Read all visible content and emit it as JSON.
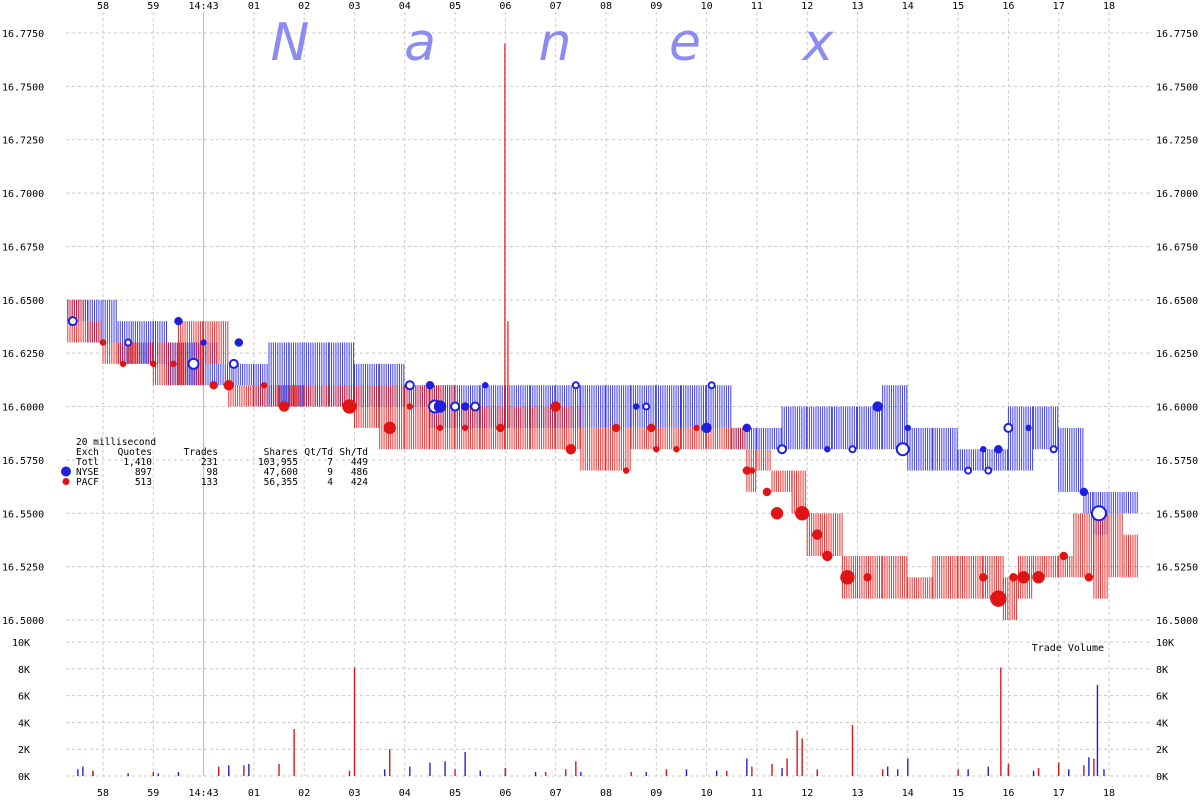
{
  "chart_data": {
    "type": "line",
    "watermark": [
      "N",
      "a",
      "n",
      "e",
      "x"
    ],
    "ylim": [
      16.5,
      16.775
    ],
    "y_ticks": [
      "16.7750",
      "16.7500",
      "16.7250",
      "16.7000",
      "16.6750",
      "16.6500",
      "16.6250",
      "16.6000",
      "16.5750",
      "16.5500",
      "16.5250",
      "16.5000"
    ],
    "x_ticks": [
      "58",
      "59",
      "14:43",
      "01",
      "02",
      "03",
      "04",
      "05",
      "06",
      "07",
      "08",
      "09",
      "10",
      "11",
      "12",
      "13",
      "14",
      "15",
      "16",
      "17",
      "18"
    ],
    "volume_label": "Trade Volume",
    "volume_ylim": [
      0,
      10000
    ],
    "volume_ticks": [
      "10K",
      "8K",
      "6K",
      "4K",
      "2K",
      "0K"
    ],
    "colors": {
      "NYSE": "#1f1fe0",
      "PACF": "#e01414"
    },
    "table": {
      "title": "20 millisecond",
      "headers": [
        "Exch",
        "Quotes",
        "Trades",
        "Shares",
        "Qt/Td",
        "Sh/Td"
      ],
      "rows": [
        [
          "Totl",
          "1,410",
          "231",
          "103,955",
          "7",
          "449"
        ],
        [
          "NYSE",
          "897",
          "98",
          "47,600",
          "9",
          "486"
        ],
        [
          "PACF",
          "513",
          "133",
          "56,355",
          "4",
          "424"
        ]
      ]
    },
    "series": [
      {
        "name": "NYSE",
        "quote_bands": [
          [
            57.3,
            16.64,
            16.65
          ],
          [
            57.7,
            16.63,
            16.65
          ],
          [
            58.0,
            16.63,
            16.65
          ],
          [
            58.3,
            16.62,
            16.64
          ],
          [
            58.6,
            16.62,
            16.64
          ],
          [
            59.0,
            16.62,
            16.64
          ],
          [
            59.3,
            16.61,
            16.63
          ],
          [
            59.6,
            16.61,
            16.63
          ],
          [
            0.0,
            16.61,
            16.63
          ],
          [
            0.3,
            16.61,
            16.62
          ],
          [
            0.6,
            16.61,
            16.62
          ],
          [
            1.0,
            16.6,
            16.62
          ],
          [
            1.3,
            16.6,
            16.63
          ],
          [
            1.7,
            16.6,
            16.63
          ],
          [
            2.0,
            16.6,
            16.63
          ],
          [
            2.5,
            16.6,
            16.63
          ],
          [
            3.0,
            16.6,
            16.62
          ],
          [
            3.5,
            16.6,
            16.62
          ],
          [
            4.0,
            16.6,
            16.61
          ],
          [
            4.5,
            16.59,
            16.61
          ],
          [
            5.0,
            16.59,
            16.61
          ],
          [
            5.5,
            16.59,
            16.61
          ],
          [
            6.0,
            16.59,
            16.61
          ],
          [
            6.5,
            16.59,
            16.61
          ],
          [
            7.0,
            16.59,
            16.61
          ],
          [
            7.5,
            16.59,
            16.61
          ],
          [
            8.0,
            16.59,
            16.61
          ],
          [
            8.5,
            16.59,
            16.61
          ],
          [
            9.0,
            16.59,
            16.61
          ],
          [
            9.5,
            16.59,
            16.61
          ],
          [
            10.0,
            16.59,
            16.61
          ],
          [
            10.5,
            16.58,
            16.59
          ],
          [
            11.0,
            16.58,
            16.59
          ],
          [
            11.5,
            16.58,
            16.6
          ],
          [
            12.0,
            16.58,
            16.6
          ],
          [
            12.5,
            16.58,
            16.6
          ],
          [
            13.0,
            16.58,
            16.6
          ],
          [
            13.5,
            16.58,
            16.61
          ],
          [
            14.0,
            16.57,
            16.59
          ],
          [
            14.5,
            16.57,
            16.59
          ],
          [
            15.0,
            16.57,
            16.58
          ],
          [
            15.5,
            16.57,
            16.58
          ],
          [
            16.0,
            16.57,
            16.6
          ],
          [
            16.5,
            16.58,
            16.6
          ],
          [
            17.0,
            16.56,
            16.59
          ],
          [
            17.5,
            16.55,
            16.56
          ],
          [
            17.7,
            16.54,
            16.56
          ],
          [
            18.0,
            16.55,
            16.56
          ],
          [
            18.3,
            16.55,
            16.56
          ]
        ],
        "trades": [
          [
            57.4,
            16.64,
            4
          ],
          [
            58.0,
            16.63,
            3
          ],
          [
            58.5,
            16.63,
            3
          ],
          [
            59.5,
            16.64,
            4
          ],
          [
            59.8,
            16.62,
            5
          ],
          [
            0.0,
            16.63,
            3
          ],
          [
            0.6,
            16.62,
            4
          ],
          [
            0.7,
            16.63,
            4
          ],
          [
            4.1,
            16.61,
            4
          ],
          [
            4.5,
            16.61,
            4
          ],
          [
            4.6,
            16.6,
            6
          ],
          [
            4.7,
            16.6,
            6
          ],
          [
            5.0,
            16.6,
            4
          ],
          [
            5.2,
            16.6,
            4
          ],
          [
            5.4,
            16.6,
            4
          ],
          [
            5.6,
            16.61,
            3
          ],
          [
            7.4,
            16.61,
            3
          ],
          [
            8.6,
            16.6,
            3
          ],
          [
            8.8,
            16.6,
            3
          ],
          [
            10.0,
            16.59,
            5
          ],
          [
            10.1,
            16.61,
            3
          ],
          [
            10.8,
            16.59,
            4
          ],
          [
            11.5,
            16.58,
            4
          ],
          [
            12.4,
            16.58,
            3
          ],
          [
            12.9,
            16.58,
            3
          ],
          [
            13.4,
            16.6,
            5
          ],
          [
            13.9,
            16.58,
            6
          ],
          [
            14.0,
            16.59,
            3
          ],
          [
            15.2,
            16.57,
            3
          ],
          [
            15.5,
            16.58,
            3
          ],
          [
            15.6,
            16.57,
            3
          ],
          [
            15.8,
            16.58,
            4
          ],
          [
            16.0,
            16.59,
            4
          ],
          [
            16.4,
            16.59,
            3
          ],
          [
            16.9,
            16.58,
            3
          ],
          [
            17.5,
            16.56,
            4
          ],
          [
            17.8,
            16.55,
            7
          ]
        ],
        "volume": [
          [
            57.5,
            500
          ],
          [
            57.6,
            700
          ],
          [
            57.8,
            300
          ],
          [
            58.5,
            200
          ],
          [
            59.1,
            200
          ],
          [
            59.5,
            300
          ],
          [
            0.5,
            800
          ],
          [
            0.9,
            900
          ],
          [
            3.6,
            500
          ],
          [
            4.1,
            700
          ],
          [
            4.5,
            1000
          ],
          [
            4.8,
            1100
          ],
          [
            5.2,
            1800
          ],
          [
            5.5,
            400
          ],
          [
            6.0,
            600
          ],
          [
            6.6,
            300
          ],
          [
            7.5,
            300
          ],
          [
            8.8,
            300
          ],
          [
            9.6,
            500
          ],
          [
            10.2,
            400
          ],
          [
            10.8,
            1300
          ],
          [
            11.5,
            600
          ],
          [
            12.2,
            300
          ],
          [
            13.6,
            700
          ],
          [
            13.8,
            500
          ],
          [
            14.0,
            1300
          ],
          [
            15.2,
            500
          ],
          [
            15.6,
            700
          ],
          [
            16.0,
            600
          ],
          [
            16.5,
            400
          ],
          [
            17.2,
            500
          ],
          [
            17.6,
            1400
          ],
          [
            17.77,
            6800
          ],
          [
            17.9,
            500
          ]
        ]
      },
      {
        "name": "PACF",
        "quote_bands": [
          [
            57.3,
            16.63,
            16.65
          ],
          [
            57.7,
            16.63,
            16.64
          ],
          [
            58.0,
            16.62,
            16.63
          ],
          [
            58.5,
            16.62,
            16.63
          ],
          [
            59.0,
            16.61,
            16.63
          ],
          [
            59.5,
            16.61,
            16.64
          ],
          [
            0.0,
            16.62,
            16.64
          ],
          [
            0.5,
            16.6,
            16.61
          ],
          [
            1.0,
            16.6,
            16.61
          ],
          [
            1.5,
            16.6,
            16.61
          ],
          [
            2.0,
            16.6,
            16.61
          ],
          [
            2.5,
            16.6,
            16.61
          ],
          [
            3.0,
            16.59,
            16.61
          ],
          [
            3.5,
            16.58,
            16.61
          ],
          [
            4.0,
            16.58,
            16.61
          ],
          [
            4.5,
            16.58,
            16.61
          ],
          [
            5.0,
            16.58,
            16.6
          ],
          [
            5.5,
            16.58,
            16.6
          ],
          [
            6.0,
            16.58,
            16.6
          ],
          [
            6.5,
            16.58,
            16.6
          ],
          [
            7.0,
            16.58,
            16.6
          ],
          [
            7.5,
            16.57,
            16.59
          ],
          [
            8.0,
            16.57,
            16.59
          ],
          [
            8.5,
            16.58,
            16.59
          ],
          [
            9.0,
            16.58,
            16.59
          ],
          [
            9.5,
            16.58,
            16.59
          ],
          [
            10.0,
            16.58,
            16.59
          ],
          [
            10.5,
            16.58,
            16.59
          ],
          [
            10.8,
            16.56,
            16.58
          ],
          [
            11.0,
            16.57,
            16.58
          ],
          [
            11.3,
            16.56,
            16.57
          ],
          [
            11.7,
            16.55,
            16.57
          ],
          [
            12.0,
            16.53,
            16.55
          ],
          [
            12.3,
            16.53,
            16.55
          ],
          [
            12.7,
            16.51,
            16.53
          ],
          [
            13.0,
            16.51,
            16.53
          ],
          [
            13.5,
            16.51,
            16.53
          ],
          [
            14.0,
            16.51,
            16.52
          ],
          [
            14.5,
            16.51,
            16.53
          ],
          [
            15.0,
            16.51,
            16.53
          ],
          [
            15.5,
            16.51,
            16.53
          ],
          [
            15.9,
            16.5,
            16.52
          ],
          [
            16.2,
            16.51,
            16.53
          ],
          [
            16.5,
            16.52,
            16.53
          ],
          [
            17.0,
            16.52,
            16.53
          ],
          [
            17.3,
            16.52,
            16.55
          ],
          [
            17.7,
            16.51,
            16.55
          ],
          [
            18.0,
            16.52,
            16.55
          ],
          [
            18.3,
            16.52,
            16.54
          ]
        ],
        "trades": [
          [
            58.0,
            16.63,
            3
          ],
          [
            58.4,
            16.62,
            3
          ],
          [
            59.0,
            16.62,
            3
          ],
          [
            59.4,
            16.62,
            3
          ],
          [
            0.2,
            16.61,
            4
          ],
          [
            0.5,
            16.61,
            5
          ],
          [
            1.2,
            16.61,
            3
          ],
          [
            1.6,
            16.6,
            5
          ],
          [
            2.9,
            16.6,
            7
          ],
          [
            3.7,
            16.59,
            6
          ],
          [
            4.1,
            16.6,
            3
          ],
          [
            4.7,
            16.59,
            3
          ],
          [
            5.2,
            16.59,
            3
          ],
          [
            5.9,
            16.59,
            4
          ],
          [
            7.0,
            16.6,
            5
          ],
          [
            7.3,
            16.58,
            5
          ],
          [
            8.2,
            16.59,
            4
          ],
          [
            8.4,
            16.57,
            3
          ],
          [
            8.9,
            16.59,
            4
          ],
          [
            9.0,
            16.58,
            3
          ],
          [
            9.4,
            16.58,
            3
          ],
          [
            9.8,
            16.59,
            3
          ],
          [
            10.8,
            16.57,
            4
          ],
          [
            10.9,
            16.57,
            3
          ],
          [
            11.2,
            16.56,
            4
          ],
          [
            11.4,
            16.55,
            6
          ],
          [
            11.9,
            16.55,
            7
          ],
          [
            12.2,
            16.54,
            5
          ],
          [
            12.4,
            16.53,
            5
          ],
          [
            12.8,
            16.52,
            7
          ],
          [
            13.2,
            16.52,
            4
          ],
          [
            15.5,
            16.52,
            4
          ],
          [
            15.8,
            16.51,
            8
          ],
          [
            16.1,
            16.52,
            4
          ],
          [
            16.3,
            16.52,
            6
          ],
          [
            16.6,
            16.52,
            6
          ],
          [
            17.1,
            16.53,
            4
          ],
          [
            17.6,
            16.52,
            4
          ]
        ],
        "volume": [
          [
            57.8,
            400
          ],
          [
            59.0,
            300
          ],
          [
            0.3,
            700
          ],
          [
            0.8,
            800
          ],
          [
            1.5,
            900
          ],
          [
            1.8,
            3500
          ],
          [
            2.9,
            400
          ],
          [
            3.0,
            8100
          ],
          [
            3.7,
            2000
          ],
          [
            5.0,
            500
          ],
          [
            6.0,
            600
          ],
          [
            6.8,
            300
          ],
          [
            7.2,
            500
          ],
          [
            7.4,
            1100
          ],
          [
            8.5,
            300
          ],
          [
            9.2,
            500
          ],
          [
            10.4,
            400
          ],
          [
            10.9,
            700
          ],
          [
            11.3,
            900
          ],
          [
            11.6,
            1300
          ],
          [
            11.8,
            3400
          ],
          [
            11.9,
            2800
          ],
          [
            12.2,
            500
          ],
          [
            12.9,
            3800
          ],
          [
            13.5,
            500
          ],
          [
            15.0,
            500
          ],
          [
            15.85,
            8100
          ],
          [
            16.0,
            900
          ],
          [
            16.6,
            600
          ],
          [
            17.0,
            1000
          ],
          [
            17.5,
            800
          ],
          [
            17.7,
            1300
          ]
        ]
      }
    ]
  }
}
